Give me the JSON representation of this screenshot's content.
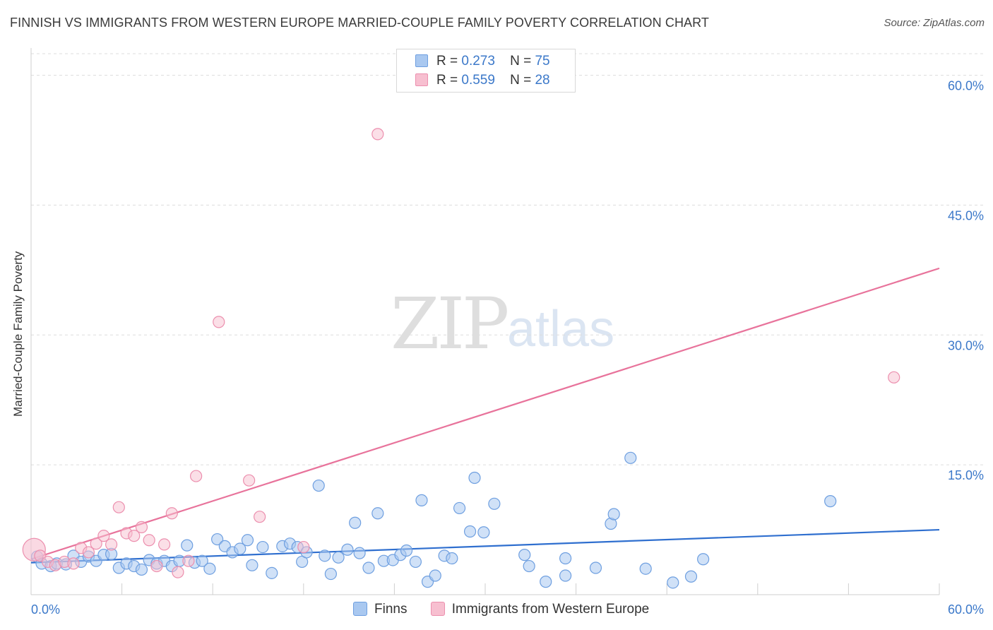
{
  "title": "FINNISH VS IMMIGRANTS FROM WESTERN EUROPE MARRIED-COUPLE FAMILY POVERTY CORRELATION CHART",
  "source": "Source: ZipAtlas.com",
  "watermark": {
    "zip": "ZIP",
    "atlas": "atlas"
  },
  "legend": {
    "finns": {
      "r_label": "R =",
      "r_value": "0.273",
      "n_label": "N =",
      "n_value": "75"
    },
    "immigrants": {
      "r_label": "R =",
      "r_value": "0.559",
      "n_label": "N =",
      "n_value": "28"
    }
  },
  "bottom_legend": {
    "finns": "Finns",
    "immigrants": "Immigrants from Western Europe"
  },
  "colors": {
    "finns_fill": "#a9c8f0",
    "finns_stroke": "#6e9fe0",
    "finns_line": "#2f6fcf",
    "imm_fill": "#f7bfd0",
    "imm_stroke": "#ec8fae",
    "imm_line": "#e8739b",
    "tick_label": "#3b78c9",
    "grid": "#dddddd"
  },
  "chart_data": {
    "type": "scatter",
    "title": "FINNISH VS IMMIGRANTS FROM WESTERN EUROPE MARRIED-COUPLE FAMILY POVERTY CORRELATION CHART",
    "xlabel": "",
    "ylabel": "Married-Couple Family Poverty",
    "xlim": [
      0,
      60
    ],
    "ylim": [
      0,
      62
    ],
    "x_tick_labels": [
      "0.0%",
      "60.0%"
    ],
    "y_ticks": [
      15,
      30,
      45,
      60
    ],
    "y_tick_labels": [
      "15.0%",
      "30.0%",
      "45.0%",
      "60.0%"
    ],
    "legend_position": "top-center",
    "series": [
      {
        "name": "Finns",
        "r": 0.273,
        "n": 75,
        "trendline": {
          "x": [
            0,
            60
          ],
          "y": [
            3.7,
            7.5
          ]
        },
        "points": [
          [
            0.4,
            4.4
          ],
          [
            0.7,
            3.6
          ],
          [
            1.3,
            3.3
          ],
          [
            1.7,
            3.6
          ],
          [
            2.3,
            3.5
          ],
          [
            2.8,
            4.5
          ],
          [
            3.3,
            3.8
          ],
          [
            3.8,
            4.4
          ],
          [
            4.3,
            3.9
          ],
          [
            4.8,
            4.6
          ],
          [
            5.3,
            4.7
          ],
          [
            5.8,
            3.1
          ],
          [
            6.3,
            3.6
          ],
          [
            6.8,
            3.3
          ],
          [
            7.3,
            2.9
          ],
          [
            7.8,
            4.0
          ],
          [
            8.3,
            3.6
          ],
          [
            8.8,
            3.9
          ],
          [
            9.3,
            3.3
          ],
          [
            9.8,
            3.9
          ],
          [
            10.3,
            5.7
          ],
          [
            10.8,
            3.7
          ],
          [
            11.3,
            3.9
          ],
          [
            11.8,
            3.0
          ],
          [
            12.3,
            6.4
          ],
          [
            12.8,
            5.6
          ],
          [
            13.3,
            4.9
          ],
          [
            13.8,
            5.3
          ],
          [
            14.3,
            6.3
          ],
          [
            14.6,
            3.4
          ],
          [
            15.3,
            5.5
          ],
          [
            15.9,
            2.5
          ],
          [
            16.6,
            5.6
          ],
          [
            17.1,
            5.9
          ],
          [
            17.6,
            5.5
          ],
          [
            17.9,
            3.8
          ],
          [
            18.2,
            4.9
          ],
          [
            19.0,
            12.6
          ],
          [
            19.4,
            4.5
          ],
          [
            19.8,
            2.4
          ],
          [
            20.3,
            4.3
          ],
          [
            20.9,
            5.2
          ],
          [
            21.4,
            8.3
          ],
          [
            21.7,
            4.8
          ],
          [
            22.3,
            3.1
          ],
          [
            22.9,
            9.4
          ],
          [
            23.3,
            3.9
          ],
          [
            23.9,
            4.0
          ],
          [
            24.4,
            4.6
          ],
          [
            24.8,
            5.1
          ],
          [
            25.4,
            3.8
          ],
          [
            25.8,
            10.9
          ],
          [
            26.2,
            1.5
          ],
          [
            26.7,
            2.2
          ],
          [
            27.3,
            4.5
          ],
          [
            27.8,
            4.2
          ],
          [
            28.3,
            10.0
          ],
          [
            29.0,
            7.3
          ],
          [
            29.3,
            13.5
          ],
          [
            29.9,
            7.2
          ],
          [
            30.6,
            10.5
          ],
          [
            32.6,
            4.6
          ],
          [
            32.9,
            3.3
          ],
          [
            34.0,
            1.5
          ],
          [
            35.3,
            2.2
          ],
          [
            35.3,
            4.2
          ],
          [
            37.3,
            3.1
          ],
          [
            38.3,
            8.2
          ],
          [
            38.5,
            9.3
          ],
          [
            39.6,
            15.8
          ],
          [
            40.6,
            3.0
          ],
          [
            42.4,
            1.4
          ],
          [
            43.6,
            2.1
          ],
          [
            44.4,
            4.1
          ],
          [
            52.8,
            10.8
          ]
        ]
      },
      {
        "name": "Immigrants from Western Europe",
        "r": 0.559,
        "n": 28,
        "trendline": {
          "x": [
            0,
            60
          ],
          "y": [
            4.1,
            37.7
          ]
        },
        "points": [
          [
            0.2,
            5.2
          ],
          [
            0.6,
            4.5
          ],
          [
            1.1,
            3.8
          ],
          [
            1.6,
            3.4
          ],
          [
            2.2,
            3.8
          ],
          [
            2.8,
            3.6
          ],
          [
            3.3,
            5.4
          ],
          [
            3.8,
            4.9
          ],
          [
            4.3,
            5.9
          ],
          [
            4.8,
            6.8
          ],
          [
            5.3,
            5.8
          ],
          [
            5.8,
            10.1
          ],
          [
            6.3,
            7.1
          ],
          [
            6.8,
            6.8
          ],
          [
            7.3,
            7.8
          ],
          [
            7.8,
            6.3
          ],
          [
            8.3,
            3.3
          ],
          [
            8.8,
            5.8
          ],
          [
            9.3,
            9.4
          ],
          [
            9.7,
            2.6
          ],
          [
            10.4,
            3.9
          ],
          [
            10.9,
            13.7
          ],
          [
            12.4,
            31.5
          ],
          [
            14.4,
            13.2
          ],
          [
            15.1,
            9.0
          ],
          [
            18.0,
            5.5
          ],
          [
            22.9,
            53.2
          ],
          [
            57.0,
            25.1
          ]
        ]
      }
    ]
  }
}
